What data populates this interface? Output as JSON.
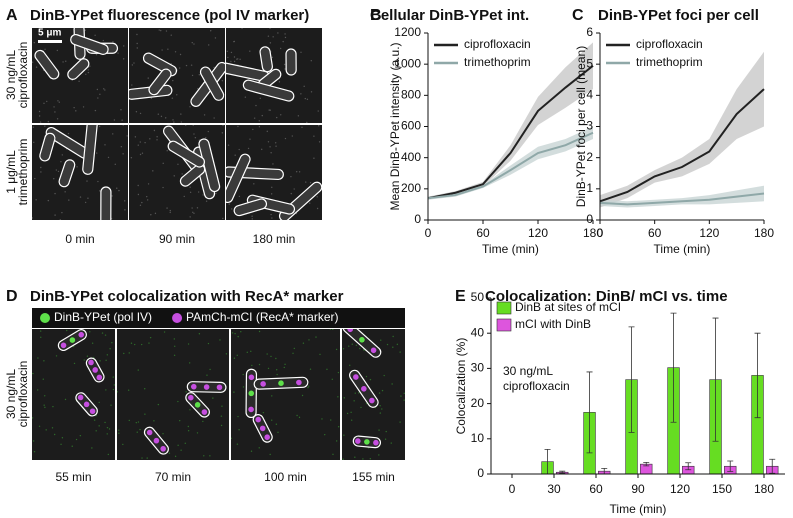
{
  "panels": {
    "A": {
      "letter": "A",
      "title": "DinB-YPet fluorescence (pol IV marker)",
      "scale_bar": "5 μm",
      "row_labels": [
        [
          "30 ng/mL",
          "ciprofloxacin"
        ],
        [
          "1 μg/mL",
          "trimethoprim"
        ]
      ],
      "col_labels": [
        "0 min",
        "90 min",
        "180 min"
      ]
    },
    "D": {
      "letter": "D",
      "title": "DinB-YPet colocalization with RecA* marker",
      "legend": [
        {
          "name": "DinB-YPet (pol IV)",
          "color": "#5ee04a"
        },
        {
          "name": "PAmCh-mCI (RecA* marker)",
          "color": "#c64fe0"
        }
      ],
      "row_label": [
        "30 ng/mL",
        "ciprofloxacin"
      ],
      "col_labels": [
        "55 min",
        "70 min",
        "100 min",
        "155 min"
      ]
    }
  },
  "chart_data": [
    {
      "type": "line",
      "letter": "B",
      "title": "Cellular DinB-YPet int.",
      "xlabel": "Time (min)",
      "ylabel": "Mean  DinB-YPet intensity (a.u.)",
      "x": [
        0,
        30,
        60,
        90,
        120,
        150,
        180
      ],
      "xlim": [
        0,
        180
      ],
      "xticks": [
        0,
        60,
        120,
        180
      ],
      "ylim": [
        0,
        1200
      ],
      "yticks": [
        0,
        200,
        400,
        600,
        800,
        1000,
        1200
      ],
      "legend": "upper left",
      "series": [
        {
          "name": "ciprofloxacin",
          "color": "#222222",
          "band_color": "#c8c8c8",
          "values": [
            140,
            175,
            230,
            430,
            700,
            850,
            990
          ],
          "lower": [
            130,
            165,
            215,
            380,
            610,
            720,
            840
          ],
          "upper": [
            150,
            185,
            245,
            480,
            790,
            980,
            1140
          ]
        },
        {
          "name": "trimethoprim",
          "color": "#8fa8a8",
          "band_color": "#c8d4d4",
          "values": [
            140,
            160,
            215,
            320,
            430,
            480,
            560
          ],
          "lower": [
            130,
            150,
            205,
            290,
            390,
            440,
            520
          ],
          "upper": [
            150,
            170,
            225,
            350,
            470,
            520,
            600
          ]
        }
      ]
    },
    {
      "type": "line",
      "letter": "C",
      "title": "DinB-YPet foci per cell",
      "xlabel": "Time (min)",
      "ylabel": "DinB-YPet foci per cell (mean)",
      "x": [
        0,
        30,
        60,
        90,
        120,
        150,
        180
      ],
      "xlim": [
        0,
        180
      ],
      "xticks": [
        0,
        60,
        120,
        180
      ],
      "ylim": [
        0,
        6
      ],
      "yticks": [
        0,
        1,
        2,
        3,
        4,
        5,
        6
      ],
      "legend": "upper left",
      "series": [
        {
          "name": "ciprofloxacin",
          "color": "#222222",
          "band_color": "#c8c8c8",
          "values": [
            0.6,
            0.9,
            1.4,
            1.7,
            2.2,
            3.4,
            4.2
          ],
          "lower": [
            0.4,
            0.7,
            1.2,
            1.4,
            1.8,
            2.6,
            3.0
          ],
          "upper": [
            0.8,
            1.1,
            1.6,
            2.0,
            2.6,
            4.2,
            5.4
          ]
        },
        {
          "name": "trimethoprim",
          "color": "#8fa8a8",
          "band_color": "#c8d4d4",
          "values": [
            0.55,
            0.5,
            0.55,
            0.6,
            0.65,
            0.75,
            0.85
          ],
          "lower": [
            0.45,
            0.4,
            0.45,
            0.5,
            0.5,
            0.55,
            0.6
          ],
          "upper": [
            0.65,
            0.6,
            0.65,
            0.7,
            0.8,
            0.95,
            1.1
          ]
        }
      ]
    },
    {
      "type": "bar",
      "letter": "E",
      "title": "Colocalization: DinB/ mCI vs. time",
      "xlabel": "Time (min)",
      "ylabel": "Colocalization (%)",
      "categories": [
        "0",
        "30",
        "60",
        "90",
        "120",
        "150",
        "180"
      ],
      "ylim": [
        0,
        50
      ],
      "yticks": [
        0,
        10,
        20,
        30,
        40,
        50
      ],
      "legend": "upper left",
      "annotation": [
        "30 ng/mL",
        "ciprofloxacin"
      ],
      "series": [
        {
          "name": "DinB at sites of mCI",
          "color": "#66dd22",
          "values": [
            0,
            3.5,
            17.5,
            26.8,
            30.2,
            26.8,
            28
          ],
          "errors": [
            0,
            3.5,
            11.5,
            15,
            15.5,
            17.5,
            12
          ]
        },
        {
          "name": "mCI with DinB",
          "color": "#dd55dd",
          "values": [
            0,
            0.5,
            0.8,
            2.8,
            2.2,
            2.2,
            2.2
          ],
          "errors": [
            0,
            0.3,
            0.8,
            0.5,
            1,
            1.5,
            2
          ]
        }
      ]
    }
  ]
}
